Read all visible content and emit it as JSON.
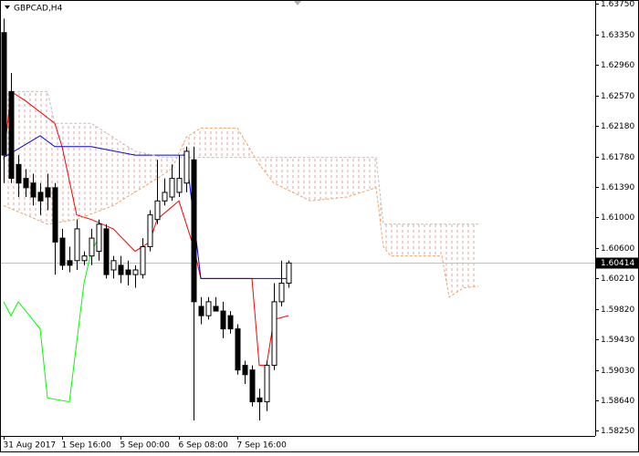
{
  "chart_data": {
    "type": "candlestick",
    "title": "GBPCAD,H4",
    "xlim": [
      -0.5,
      81
    ],
    "ylim": [
      1.5818,
      1.638
    ],
    "yticks": [
      {
        "value": 1.6375,
        "label": "1.63750"
      },
      {
        "value": 1.6335,
        "label": "1.63350"
      },
      {
        "value": 1.6296,
        "label": "1.62960"
      },
      {
        "value": 1.6257,
        "label": "1.62570"
      },
      {
        "value": 1.6218,
        "label": "1.62180"
      },
      {
        "value": 1.6178,
        "label": "1.61780"
      },
      {
        "value": 1.6139,
        "label": "1.61390"
      },
      {
        "value": 1.61,
        "label": "1.61000"
      },
      {
        "value": 1.606,
        "label": "1.60600"
      },
      {
        "value": 1.6021,
        "label": "1.60210"
      },
      {
        "value": 1.5982,
        "label": "1.59820"
      },
      {
        "value": 1.5943,
        "label": "1.59430"
      },
      {
        "value": 1.5903,
        "label": "1.59030"
      },
      {
        "value": 1.5864,
        "label": "1.58640"
      },
      {
        "value": 1.5825,
        "label": "1.58250"
      }
    ],
    "xticks": [
      {
        "value": 0,
        "label": "31 Aug 2017"
      },
      {
        "value": 8,
        "label": "1 Sep 16:00"
      },
      {
        "value": 16,
        "label": "5 Sep 00:00"
      },
      {
        "value": 24,
        "label": "6 Sep 08:00"
      },
      {
        "value": 32,
        "label": "7 Sep 16:00"
      }
    ],
    "current_price": {
      "value": 1.60414,
      "label": "1.60414"
    },
    "bull_color": "#ffffff",
    "bear_color": "#000000",
    "candles": {
      "open": [
        1.6338,
        1.6262,
        1.6168,
        1.615,
        1.6144,
        1.6132,
        1.6138,
        1.6138,
        1.6073,
        1.6044,
        1.6044,
        1.6044,
        1.605,
        1.6056,
        1.6085,
        1.6032,
        1.6038,
        1.6032,
        1.6026,
        1.6026,
        1.6062,
        1.6097,
        1.6121,
        1.6126,
        1.6132,
        1.6144,
        1.6174,
        1.5985,
        1.5973,
        1.5985,
        1.5979,
        1.5973,
        1.5956,
        1.5909,
        1.5903,
        1.5867,
        1.5862,
        1.5909,
        1.5991,
        1.6015
      ],
      "high": [
        1.6356,
        1.6286,
        1.618,
        1.6162,
        1.6156,
        1.6144,
        1.6156,
        1.6144,
        1.6085,
        1.6062,
        1.6097,
        1.6056,
        1.6085,
        1.6097,
        1.6091,
        1.605,
        1.605,
        1.6044,
        1.6038,
        1.6073,
        1.6109,
        1.6174,
        1.615,
        1.6168,
        1.618,
        1.6191,
        1.6191,
        1.5997,
        1.5997,
        1.5997,
        1.5991,
        1.5979,
        1.5962,
        1.5915,
        1.5909,
        1.5879,
        1.5915,
        1.6015,
        1.6044,
        1.6044
      ],
      "low": [
        1.6144,
        1.6144,
        1.6126,
        1.6126,
        1.6115,
        1.6103,
        1.6109,
        1.6026,
        1.6032,
        1.6029,
        1.6032,
        1.6038,
        1.6038,
        1.6044,
        1.6021,
        1.6021,
        1.6015,
        1.6012,
        1.6009,
        1.6021,
        1.6056,
        1.6091,
        1.6115,
        1.6121,
        1.6126,
        1.6132,
        1.5838,
        1.5962,
        1.5968,
        1.5979,
        1.5944,
        1.595,
        1.5897,
        1.5885,
        1.5856,
        1.5838,
        1.585,
        1.5903,
        1.5985,
        1.6009
      ],
      "close": [
        1.618,
        1.615,
        1.6144,
        1.6138,
        1.6126,
        1.6121,
        1.6126,
        1.6068,
        1.6038,
        1.6038,
        1.6085,
        1.605,
        1.6073,
        1.6091,
        1.6026,
        1.6044,
        1.6026,
        1.6026,
        1.6032,
        1.6062,
        1.6103,
        1.6121,
        1.6132,
        1.615,
        1.615,
        1.6185,
        1.5991,
        1.5973,
        1.5991,
        1.5979,
        1.5956,
        1.5956,
        1.5903,
        1.5897,
        1.5862,
        1.5862,
        1.5909,
        1.5991,
        1.6015,
        1.6041
      ]
    },
    "series": [
      {
        "color": "#ff0000",
        "style": "solid",
        "x": [
          0,
          1,
          3,
          7,
          8,
          10,
          12,
          15,
          18,
          20,
          21,
          24,
          26,
          27,
          34,
          35,
          36,
          37,
          39
        ],
        "values": [
          1.6174,
          1.6262,
          1.625,
          1.6221,
          1.6191,
          1.6103,
          1.6097,
          1.6085,
          1.6056,
          1.6068,
          1.6097,
          1.6121,
          1.6062,
          1.6021,
          1.6021,
          1.5909,
          1.5909,
          1.5968,
          1.5973
        ]
      },
      {
        "color": "#0000ff",
        "style": "solid",
        "x": [
          0,
          5,
          7,
          12,
          18,
          25,
          27,
          39
        ],
        "values": [
          1.6177,
          1.6205,
          1.6191,
          1.6191,
          1.618,
          1.618,
          1.6021,
          1.6021
        ]
      },
      {
        "color": "#00ff00",
        "style": "solid",
        "x": [
          0,
          1,
          2,
          5,
          6,
          9,
          11,
          12,
          13
        ],
        "values": [
          1.5991,
          1.5973,
          1.5991,
          1.5956,
          1.5867,
          1.5862,
          1.6015,
          1.6056,
          1.6073
        ]
      },
      {
        "color": "#f4a460",
        "style": "dashed",
        "x": [
          0,
          6,
          10,
          15,
          20,
          23,
          25,
          27,
          32,
          35,
          37,
          42,
          47,
          51,
          52,
          53,
          60,
          61,
          63,
          65
        ],
        "values": [
          1.6115,
          1.6091,
          1.6097,
          1.6115,
          1.6144,
          1.6162,
          1.6203,
          1.6215,
          1.6215,
          1.6168,
          1.6144,
          1.6121,
          1.6126,
          1.6138,
          1.6062,
          1.605,
          1.605,
          1.5997,
          1.6009,
          1.6011
        ]
      },
      {
        "color": "#c0c0c0",
        "style": "dashed",
        "x": [
          0,
          6,
          7,
          12,
          18,
          22,
          51,
          52,
          65
        ],
        "values": [
          1.6262,
          1.6262,
          1.6221,
          1.6221,
          1.6185,
          1.6177,
          1.6177,
          1.6091,
          1.6091
        ]
      }
    ],
    "cloud_fill": true
  }
}
